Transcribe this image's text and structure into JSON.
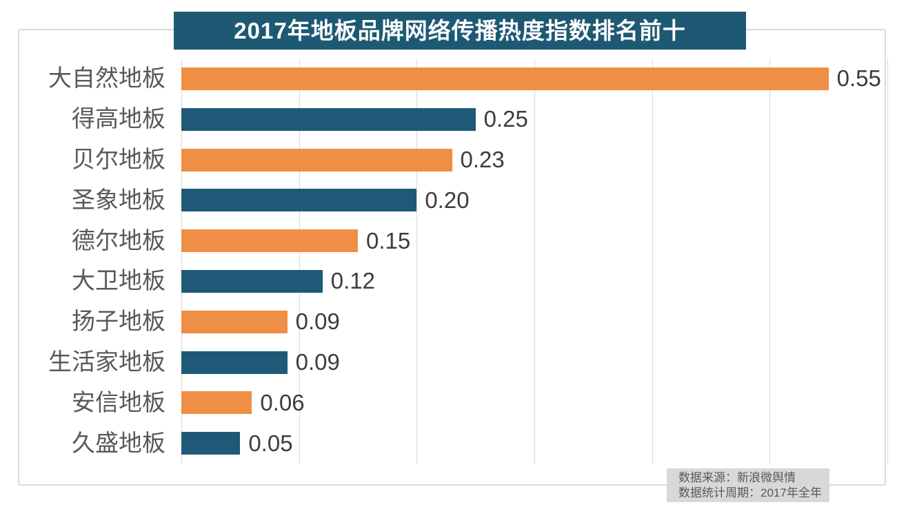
{
  "title": "2017年地板品牌网络传播热度指数排名前十",
  "source": {
    "line1": "数据来源：新浪微舆情",
    "line2": "数据统计周期：2017年全年"
  },
  "colors": {
    "title_background": "#1e5974",
    "title_text": "#ffffff",
    "bar_orange": "#ef8e45",
    "bar_blue": "#1e5a77",
    "gridline": "#d9d9d9",
    "category_text": "#595959",
    "value_text": "#3c3c3c",
    "source_background": "#d8d8d8",
    "source_text": "#595959"
  },
  "chart_data": {
    "type": "bar",
    "orientation": "horizontal",
    "title": "2017年地板品牌网络传播热度指数排名前十",
    "categories": [
      "大自然地板",
      "得高地板",
      "贝尔地板",
      "圣象地板",
      "德尔地板",
      "大卫地板",
      "扬子地板",
      "生活家地板",
      "安信地板",
      "久盛地板"
    ],
    "values": [
      0.55,
      0.25,
      0.23,
      0.2,
      0.15,
      0.12,
      0.09,
      0.09,
      0.06,
      0.05
    ],
    "value_labels": [
      "0.55",
      "0.25",
      "0.23",
      "0.20",
      "0.15",
      "0.12",
      "0.09",
      "0.09",
      "0.06",
      "0.05"
    ],
    "bar_colors_alternating": [
      "#ef8e45",
      "#1e5a77"
    ],
    "xlabel": "",
    "ylabel": "",
    "xlim": [
      0,
      0.6
    ],
    "gridline_interval": 0.1,
    "grid": true,
    "legend": false,
    "data_labels": "outside-end"
  }
}
